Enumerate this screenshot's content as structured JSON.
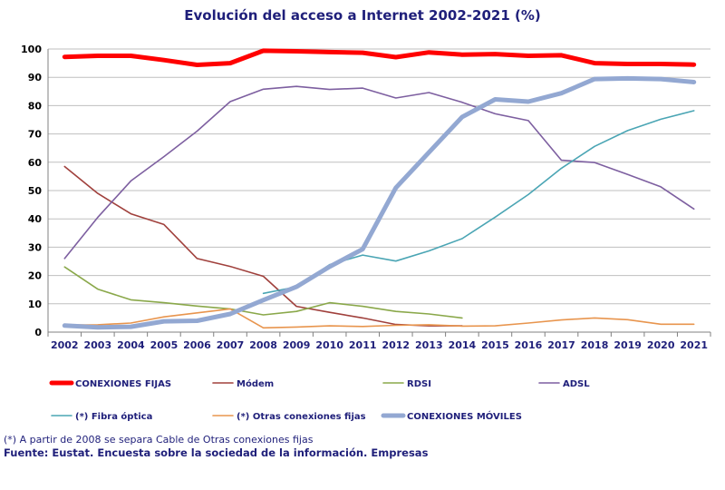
{
  "chart_data": {
    "type": "line",
    "title": "Evolución del acceso a Internet 2002-2021 (%)",
    "categories": [
      "2002",
      "2003",
      "2004",
      "2005",
      "2006",
      "2007",
      "2008",
      "2009",
      "2010",
      "2011",
      "2012",
      "2013",
      "2014",
      "2015",
      "2016",
      "2017",
      "2018",
      "2019",
      "2020",
      "2021"
    ],
    "ylim": [
      0,
      100
    ],
    "yticks": [
      "0",
      "10",
      "20",
      "30",
      "40",
      "50",
      "60",
      "70",
      "80",
      "90",
      "100"
    ],
    "grid": "horizontal",
    "legend_position": "bottom",
    "series": [
      {
        "name": "CONEXIONES FIJAS",
        "color": "#ff0000",
        "thick": true,
        "values": [
          97.2,
          97.6,
          97.6,
          96.1,
          94.4,
          95.0,
          99.4,
          99.2,
          98.9,
          98.7,
          97.1,
          98.8,
          98.0,
          98.2,
          97.6,
          97.8,
          95.0,
          94.7,
          94.7,
          94.5
        ]
      },
      {
        "name": "Módem",
        "color": "#a0403c",
        "values": [
          58.5,
          49.0,
          41.8,
          38.0,
          26.0,
          23.2,
          19.7,
          9.1,
          7.0,
          5.0,
          2.7,
          2.2,
          2.2,
          null,
          null,
          null,
          null,
          null,
          null,
          null
        ]
      },
      {
        "name": "RDSI",
        "color": "#8aa84a",
        "values": [
          23.0,
          15.2,
          11.4,
          10.4,
          9.2,
          8.2,
          6.1,
          7.3,
          10.4,
          9.1,
          7.3,
          6.4,
          5.0,
          null,
          null,
          null,
          null,
          null,
          null,
          null
        ]
      },
      {
        "name": "ADSL",
        "color": "#7d5fa0",
        "values": [
          26.0,
          40.5,
          53.4,
          62.0,
          71.0,
          81.4,
          85.8,
          86.8,
          85.7,
          86.2,
          82.7,
          84.6,
          81.2,
          77.1,
          74.7,
          60.7,
          59.9,
          55.7,
          51.3,
          43.5
        ]
      },
      {
        "name": "(*) Fibra óptica",
        "color": "#4aa5b4",
        "values": [
          null,
          null,
          null,
          null,
          null,
          null,
          13.7,
          16.0,
          23.8,
          27.2,
          25.1,
          28.7,
          33.0,
          40.6,
          48.6,
          57.9,
          65.6,
          71.2,
          75.2,
          78.2
        ]
      },
      {
        "name": "(*) Otras conexiones fijas",
        "color": "#e8954e",
        "values": [
          2.5,
          2.6,
          3.2,
          5.4,
          6.8,
          8.2,
          1.5,
          1.8,
          2.2,
          2.0,
          2.4,
          2.6,
          2.1,
          2.2,
          3.2,
          4.3,
          5.0,
          4.4,
          2.8,
          2.8
        ]
      },
      {
        "name": "CONEXIONES MÓVILES",
        "color": "#93a8d2",
        "thick": true,
        "values": [
          2.3,
          1.7,
          1.9,
          3.8,
          4.0,
          6.4,
          11.3,
          16.0,
          23.1,
          29.3,
          51.0,
          63.5,
          76.0,
          82.2,
          81.4,
          84.4,
          89.4,
          89.6,
          89.4,
          88.3
        ]
      }
    ]
  },
  "footnote": "(*) A partir de 2008 se separa Cable de Otras conexiones fijas",
  "source": "Fuente: Eustat. Encuesta sobre la sociedad de la información. Empresas"
}
